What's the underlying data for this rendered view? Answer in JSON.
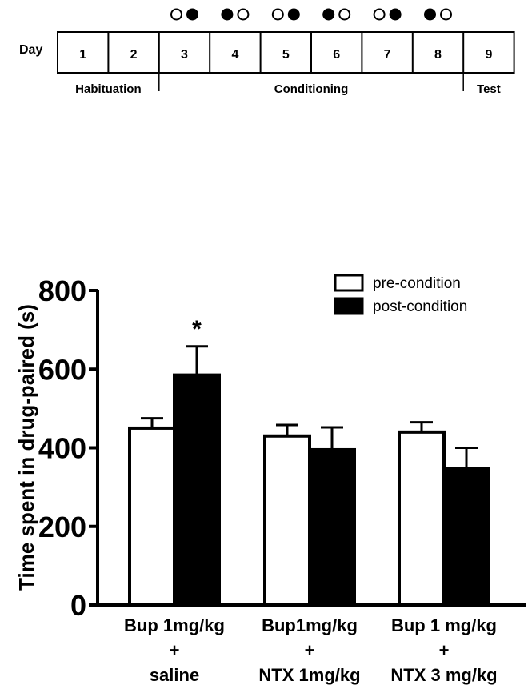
{
  "timeline": {
    "day_label": "Day",
    "days": [
      "1",
      "2",
      "3",
      "4",
      "5",
      "6",
      "7",
      "8",
      "9"
    ],
    "conditioning_sessions": [
      [
        "open",
        "filled"
      ],
      [
        "filled",
        "open"
      ],
      [
        "open",
        "filled"
      ],
      [
        "filled",
        "open"
      ],
      [
        "open",
        "filled"
      ],
      [
        "filled",
        "open"
      ]
    ],
    "phases": [
      {
        "label": "Habituation",
        "days": [
          1,
          2
        ]
      },
      {
        "label": "Conditioning",
        "days": [
          3,
          8
        ]
      },
      {
        "label": "Test",
        "days": [
          9,
          9
        ]
      }
    ]
  },
  "chart_data": {
    "type": "bar",
    "ylabel": "Time spent in drug-paired (s)",
    "ylim": [
      0,
      800
    ],
    "yticks": [
      "0",
      "200",
      "400",
      "600",
      "800"
    ],
    "categories": [
      [
        "Bup 1mg/kg",
        "+",
        "saline"
      ],
      [
        "Bup1mg/kg",
        "+",
        "NTX 1mg/kg"
      ],
      [
        "Bup 1 mg/kg",
        "+",
        "NTX 3 mg/kg"
      ]
    ],
    "series": [
      {
        "name": "pre-condition",
        "fill": "#ffffff",
        "values": [
          450,
          430,
          440
        ],
        "errors": [
          25,
          28,
          25
        ]
      },
      {
        "name": "post-condition",
        "fill": "#000000",
        "values": [
          585,
          395,
          348
        ],
        "errors": [
          73,
          57,
          52
        ]
      }
    ],
    "annotations": [
      {
        "text": "*",
        "category": 0,
        "series": 1
      }
    ],
    "legend": "top-right",
    "grid": false
  }
}
